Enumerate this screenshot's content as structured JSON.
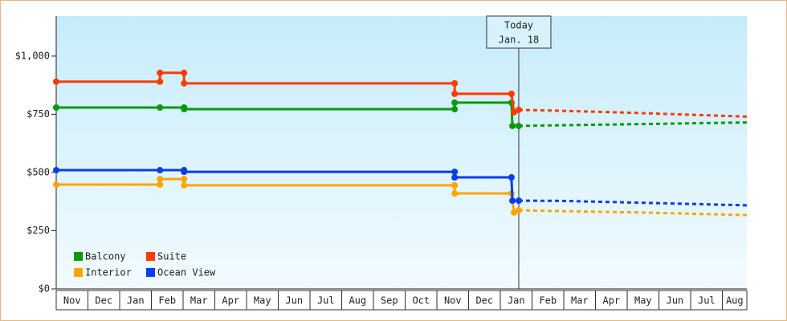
{
  "chart_data": {
    "type": "line",
    "annotation": {
      "title": "Today",
      "date": "Jan. 18",
      "x": 14.58
    },
    "categories": [
      "Nov",
      "Dec",
      "Jan",
      "Feb",
      "Mar",
      "Apr",
      "May",
      "Jun",
      "Jul",
      "Aug",
      "Sep",
      "Oct",
      "Nov",
      "Dec",
      "Jan",
      "Feb",
      "Mar",
      "Apr",
      "May",
      "Jun",
      "Jul",
      "Aug"
    ],
    "xlim": [
      0,
      21.77
    ],
    "ylim": [
      0,
      1172
    ],
    "yticks": [
      {
        "value": 0,
        "label": "$0"
      },
      {
        "value": 250,
        "label": "$250"
      },
      {
        "value": 500,
        "label": "$500"
      },
      {
        "value": 750,
        "label": "$750"
      },
      {
        "value": 1000,
        "label": "$1,000"
      }
    ],
    "legend": "lower left",
    "series": [
      {
        "name": "Balcony",
        "color": "#0a9a0a",
        "x": [
          0,
          3.27,
          4.03,
          4.03,
          12.56,
          12.56,
          14.35,
          14.38,
          14.58
        ],
        "values": [
          779,
          779,
          779,
          772,
          772,
          800,
          800,
          700,
          700
        ],
        "forecast": {
          "x": [
            14.58,
            15.95,
            18.48,
            21.77
          ],
          "values": [
            700,
            703,
            708,
            715
          ]
        }
      },
      {
        "name": "Suite",
        "color": "#ff3a00",
        "x": [
          0,
          3.27,
          3.27,
          4.03,
          4.03,
          12.56,
          12.56,
          14.35,
          14.43,
          14.58
        ],
        "values": [
          890,
          890,
          928,
          928,
          883,
          883,
          838,
          838,
          759,
          769
        ],
        "forecast": {
          "x": [
            14.58,
            15.95,
            18.48,
            21.77
          ],
          "values": [
            769,
            765,
            755,
            740
          ]
        }
      },
      {
        "name": "Interior",
        "color": "#ffa500",
        "x": [
          0,
          3.27,
          3.27,
          4.03,
          4.03,
          12.56,
          12.56,
          14.35,
          14.43,
          14.58
        ],
        "values": [
          448,
          448,
          472,
          472,
          445,
          445,
          410,
          410,
          328,
          338
        ],
        "forecast": {
          "x": [
            14.58,
            15.95,
            18.48,
            21.77
          ],
          "values": [
            338,
            334,
            328,
            317
          ]
        }
      },
      {
        "name": "Ocean View",
        "color": "#0a3cf0",
        "x": [
          0,
          3.27,
          4.03,
          4.03,
          12.56,
          12.56,
          14.35,
          14.38,
          14.58
        ],
        "values": [
          510,
          510,
          510,
          503,
          503,
          479,
          479,
          379,
          379
        ],
        "forecast": {
          "x": [
            14.58,
            15.95,
            18.48,
            21.77
          ],
          "values": [
            379,
            378,
            370,
            359
          ]
        }
      }
    ]
  }
}
